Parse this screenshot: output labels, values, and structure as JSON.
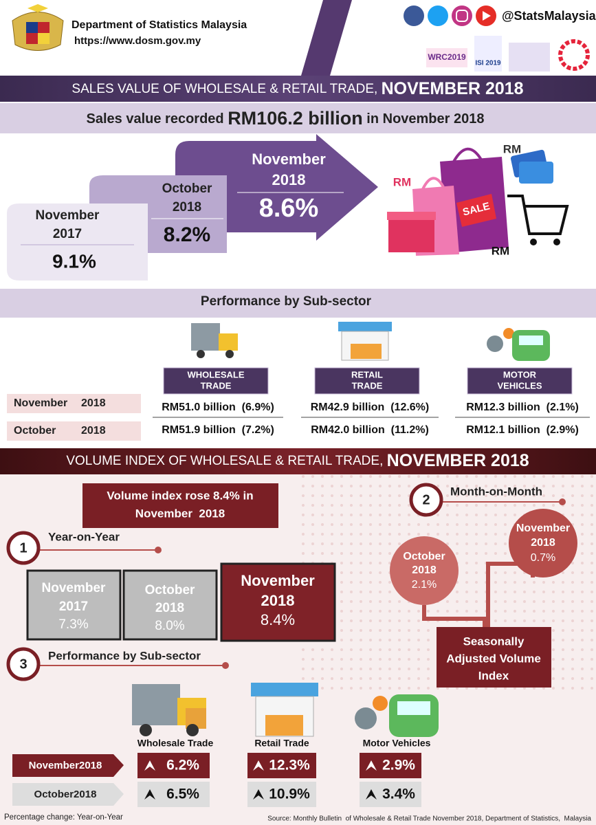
{
  "header": {
    "org": "Department of Statistics Malaysia",
    "url": "https://www.dosm.gov.my",
    "handle": "@StatsMalaysia",
    "logos": [
      "WRC2019",
      "ISI 2019"
    ]
  },
  "sales": {
    "title": [
      "SALES VALUE OF WHOLESALE & RETAIL TRADE, ",
      "NOVEMBER 2018"
    ],
    "headline": [
      "Sales value recorded ",
      "RM106.2 billion",
      " in November 2018"
    ],
    "steps": [
      {
        "period": [
          "November",
          "2017"
        ],
        "value": "9.1%"
      },
      {
        "period": [
          "October",
          "2018"
        ],
        "value": "8.2%"
      },
      {
        "period": [
          "November",
          "2018"
        ],
        "value": "8.6%"
      }
    ],
    "illustration": [
      "RM",
      "RM",
      "SALE",
      "RM"
    ],
    "subsector": {
      "title": "Performance by Sub-sector",
      "sectors": [
        [
          "WHOLESALE",
          "TRADE"
        ],
        [
          "RETAIL",
          "TRADE"
        ],
        [
          "MOTOR",
          "VEHICLES"
        ]
      ],
      "rows": [
        {
          "period": [
            "November",
            "2018"
          ],
          "values": [
            "RM51.0 billion  (6.9%)",
            "RM42.9 billion  (12.6%)",
            "RM12.3 billion  (2.1%)"
          ]
        },
        {
          "period": [
            "October",
            "2018"
          ],
          "values": [
            "RM51.9 billion  (7.2%)",
            "RM42.0 billion  (11.2%)",
            "RM12.1 billion  (2.9%)"
          ]
        }
      ]
    }
  },
  "volume": {
    "title": [
      "VOLUME INDEX OF WHOLESALE & RETAIL TRADE, ",
      "NOVEMBER 2018"
    ],
    "headline": [
      "Volume index rose 8.4% in",
      "November  2018"
    ],
    "yoy": {
      "number": "1",
      "title": "Year-on-Year",
      "boxes": [
        [
          "November",
          "2017",
          "7.3%"
        ],
        [
          "October",
          "2018",
          "8.0%"
        ],
        [
          "November",
          "2018",
          "8.4%"
        ]
      ]
    },
    "mom": {
      "number": "2",
      "title": "Month-on-Month",
      "circles": [
        [
          "October",
          "2018",
          "2.1%"
        ],
        [
          "November",
          "2018",
          "0.7%"
        ]
      ],
      "label": [
        "Seasonally",
        "Adjusted Volume",
        "Index"
      ]
    },
    "subsector": {
      "number": "3",
      "title": "Performance by Sub-sector",
      "sectors": [
        "Wholesale Trade",
        "Retail Trade",
        "Motor Vehicles"
      ],
      "rows": [
        {
          "period": "November2018",
          "values": [
            "6.2%",
            "12.3%",
            "2.9%"
          ]
        },
        {
          "period": "October2018",
          "values": [
            "6.5%",
            "10.9%",
            "3.4%"
          ]
        }
      ]
    },
    "note": "Percentage change: Year-on-Year",
    "source": "Source: Monthly Bulletin  of Wholesale & Retail Trade November 2018, Department of Statistics,  Malaysia"
  }
}
